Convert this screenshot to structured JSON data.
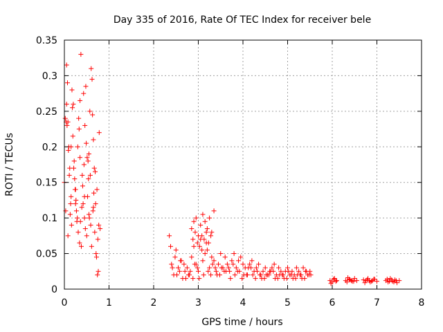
{
  "chart_data": {
    "type": "scatter",
    "title": "Day 335 of 2016, Rate Of TEC Index for receiver bele",
    "xlabel": "GPS time / hours",
    "ylabel": "ROTI / TECUs",
    "xlim": [
      0,
      8
    ],
    "ylim": [
      0,
      0.35
    ],
    "xticks": [
      0,
      1,
      2,
      3,
      4,
      5,
      6,
      7,
      8
    ],
    "xtick_labels": [
      "0",
      "1",
      "2",
      "3",
      "4",
      "5",
      "6",
      "7",
      "8"
    ],
    "yticks": [
      0,
      0.05,
      0.1,
      0.15,
      0.2,
      0.25,
      0.3,
      0.35
    ],
    "ytick_labels": [
      "0",
      "0.05",
      "0.1",
      "0.15",
      "0.2",
      "0.25",
      "0.3",
      "0.35"
    ],
    "grid": true,
    "marker": "+",
    "color": "#ff0000",
    "series": [
      {
        "name": "ROTI",
        "x": [
          0.0,
          0.02,
          0.05,
          0.07,
          0.08,
          0.1,
          0.12,
          0.15,
          0.17,
          0.2,
          0.22,
          0.25,
          0.27,
          0.3,
          0.32,
          0.35,
          0.37,
          0.4,
          0.42,
          0.45,
          0.47,
          0.5,
          0.52,
          0.55,
          0.57,
          0.6,
          0.62,
          0.65,
          0.67,
          0.7,
          0.72,
          0.75,
          0.77,
          0.8,
          0.03,
          0.06,
          0.09,
          0.11,
          0.14,
          0.16,
          0.19,
          0.21,
          0.24,
          0.26,
          0.29,
          0.31,
          0.34,
          0.36,
          0.39,
          0.41,
          0.44,
          0.46,
          0.49,
          0.51,
          0.54,
          0.56,
          0.59,
          0.61,
          0.64,
          0.66,
          0.69,
          0.71,
          0.74,
          0.76,
          0.04,
          0.13,
          0.23,
          0.33,
          0.43,
          0.53,
          0.63,
          0.73,
          0.08,
          0.18,
          0.28,
          0.38,
          0.48,
          0.58,
          0.68,
          0.78,
          0.05,
          0.15,
          0.25,
          0.35,
          0.45,
          0.55,
          0.65,
          2.35,
          2.4,
          2.45,
          2.5,
          2.55,
          2.6,
          2.65,
          2.7,
          2.75,
          2.8,
          2.85,
          2.9,
          2.95,
          3.0,
          3.05,
          3.1,
          3.15,
          3.2,
          3.25,
          3.3,
          3.35,
          3.4,
          3.45,
          3.5,
          3.55,
          3.6,
          3.65,
          3.7,
          3.75,
          3.8,
          3.85,
          3.9,
          3.95,
          4.0,
          4.05,
          4.1,
          4.15,
          4.2,
          4.25,
          4.3,
          4.35,
          4.4,
          4.45,
          4.5,
          4.55,
          4.6,
          4.65,
          4.7,
          4.75,
          4.8,
          4.85,
          4.9,
          4.95,
          5.0,
          5.05,
          5.1,
          5.15,
          5.2,
          5.25,
          5.3,
          5.35,
          5.4,
          5.45,
          5.5,
          2.38,
          2.48,
          2.58,
          2.68,
          2.78,
          2.88,
          2.98,
          3.08,
          3.18,
          3.28,
          3.38,
          3.48,
          3.58,
          3.68,
          3.78,
          3.88,
          3.98,
          4.08,
          4.18,
          4.28,
          4.38,
          4.48,
          4.58,
          4.68,
          4.78,
          4.88,
          4.98,
          5.08,
          5.18,
          5.28,
          5.38,
          5.48,
          2.42,
          2.52,
          2.62,
          2.72,
          2.82,
          2.92,
          3.02,
          3.12,
          3.22,
          3.32,
          3.42,
          3.52,
          3.62,
          3.72,
          3.82,
          3.92,
          4.02,
          4.12,
          4.22,
          4.32,
          4.42,
          4.52,
          4.62,
          4.72,
          4.82,
          4.92,
          5.02,
          5.12,
          5.22,
          5.32,
          5.42,
          5.52,
          2.85,
          2.9,
          2.95,
          3.0,
          3.05,
          3.1,
          3.15,
          3.2,
          3.25,
          3.3,
          3.35,
          2.88,
          2.93,
          2.98,
          3.03,
          3.08,
          3.13,
          3.18,
          3.23,
          3.28,
          5.95,
          6.0,
          6.05,
          6.1,
          5.97,
          6.03,
          6.08,
          6.3,
          6.35,
          6.4,
          6.45,
          6.5,
          6.55,
          6.33,
          6.38,
          6.43,
          6.48,
          6.7,
          6.75,
          6.8,
          6.85,
          6.9,
          6.95,
          7.0,
          6.73,
          6.78,
          6.83,
          6.88,
          6.93,
          7.2,
          7.25,
          7.3,
          7.35,
          7.4,
          7.45,
          7.5,
          7.23,
          7.28,
          7.33,
          7.38,
          7.43
        ],
        "y": [
          0.15,
          0.24,
          0.315,
          0.29,
          0.235,
          0.2,
          0.17,
          0.13,
          0.28,
          0.26,
          0.18,
          0.14,
          0.11,
          0.2,
          0.24,
          0.265,
          0.33,
          0.16,
          0.12,
          0.1,
          0.085,
          0.075,
          0.13,
          0.19,
          0.25,
          0.31,
          0.295,
          0.21,
          0.17,
          0.12,
          0.045,
          0.07,
          0.09,
          0.085,
          0.11,
          0.23,
          0.195,
          0.16,
          0.12,
          0.09,
          0.215,
          0.17,
          0.14,
          0.125,
          0.1,
          0.08,
          0.065,
          0.095,
          0.115,
          0.145,
          0.175,
          0.23,
          0.205,
          0.185,
          0.155,
          0.1,
          0.09,
          0.06,
          0.11,
          0.135,
          0.165,
          0.05,
          0.02,
          0.025,
          0.235,
          0.105,
          0.155,
          0.225,
          0.275,
          0.18,
          0.245,
          0.14,
          0.075,
          0.255,
          0.095,
          0.06,
          0.285,
          0.16,
          0.08,
          0.22,
          0.26,
          0.2,
          0.12,
          0.185,
          0.13,
          0.105,
          0.115,
          0.075,
          0.035,
          0.02,
          0.055,
          0.03,
          0.04,
          0.015,
          0.025,
          0.03,
          0.02,
          0.045,
          0.06,
          0.035,
          0.025,
          0.07,
          0.04,
          0.05,
          0.055,
          0.03,
          0.045,
          0.04,
          0.025,
          0.035,
          0.05,
          0.03,
          0.045,
          0.035,
          0.025,
          0.04,
          0.05,
          0.03,
          0.04,
          0.045,
          0.035,
          0.03,
          0.02,
          0.035,
          0.04,
          0.025,
          0.03,
          0.035,
          0.02,
          0.025,
          0.03,
          0.02,
          0.025,
          0.03,
          0.035,
          0.02,
          0.03,
          0.025,
          0.02,
          0.025,
          0.03,
          0.02,
          0.025,
          0.02,
          0.03,
          0.025,
          0.02,
          0.03,
          0.025,
          0.02,
          0.025,
          0.06,
          0.045,
          0.025,
          0.035,
          0.02,
          0.015,
          0.03,
          0.055,
          0.065,
          0.02,
          0.03,
          0.02,
          0.025,
          0.03,
          0.035,
          0.025,
          0.015,
          0.02,
          0.03,
          0.015,
          0.02,
          0.015,
          0.02,
          0.025,
          0.015,
          0.02,
          0.015,
          0.02,
          0.015,
          0.02,
          0.015,
          0.02,
          0.03,
          0.02,
          0.04,
          0.015,
          0.025,
          0.035,
          0.015,
          0.02,
          0.025,
          0.035,
          0.02,
          0.03,
          0.025,
          0.015,
          0.02,
          0.025,
          0.02,
          0.03,
          0.02,
          0.025,
          0.015,
          0.02,
          0.025,
          0.015,
          0.02,
          0.015,
          0.025,
          0.015,
          0.02,
          0.015,
          0.025,
          0.02,
          0.085,
          0.095,
          0.1,
          0.075,
          0.09,
          0.105,
          0.095,
          0.085,
          0.1,
          0.08,
          0.11,
          0.07,
          0.08,
          0.065,
          0.06,
          0.075,
          0.07,
          0.08,
          0.065,
          0.075,
          0.012,
          0.01,
          0.015,
          0.012,
          0.008,
          0.014,
          0.011,
          0.012,
          0.016,
          0.013,
          0.011,
          0.015,
          0.012,
          0.01,
          0.014,
          0.012,
          0.011,
          0.013,
          0.012,
          0.015,
          0.01,
          0.012,
          0.014,
          0.011,
          0.009,
          0.013,
          0.012,
          0.011,
          0.014,
          0.012,
          0.01,
          0.015,
          0.011,
          0.013,
          0.009,
          0.012,
          0.014,
          0.011,
          0.013,
          0.01,
          0.012
        ]
      }
    ]
  }
}
